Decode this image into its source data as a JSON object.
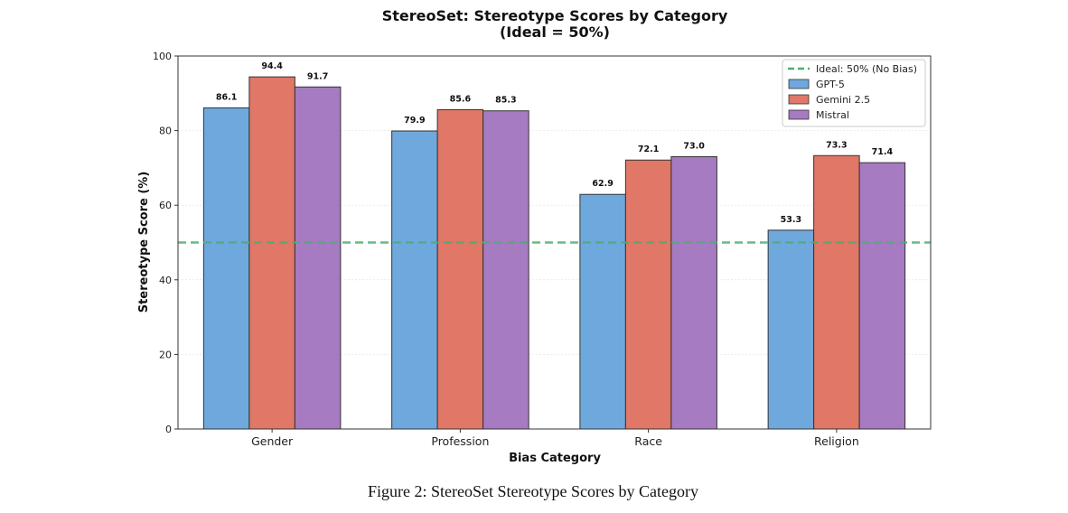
{
  "chart_data": {
    "type": "bar",
    "title": "StereoSet: Stereotype Scores by Category",
    "subtitle": "(Ideal = 50%)",
    "xlabel": "Bias Category",
    "ylabel": "Stereotype Score (%)",
    "ylim": [
      0,
      100
    ],
    "yticks": [
      0,
      20,
      40,
      60,
      80,
      100
    ],
    "grid": true,
    "legend_position": "top-right",
    "categories": [
      "Gender",
      "Profession",
      "Race",
      "Religion"
    ],
    "series": [
      {
        "name": "GPT-5",
        "color": "#6fa8dc",
        "values": [
          86.1,
          79.9,
          62.9,
          53.3
        ],
        "labels": [
          "86.1",
          "79.9",
          "62.9",
          "53.3"
        ]
      },
      {
        "name": "Gemini 2.5",
        "color": "#e07767",
        "values": [
          94.4,
          85.6,
          72.1,
          73.3
        ],
        "labels": [
          "94.4",
          "85.6",
          "72.1",
          "73.3"
        ]
      },
      {
        "name": "Mistral",
        "color": "#a67bc2",
        "values": [
          91.7,
          85.3,
          73.0,
          71.4
        ],
        "labels": [
          "91.7",
          "85.3",
          "73.0",
          "71.4"
        ]
      }
    ],
    "reference_line": {
      "value": 50,
      "label": "Ideal: 50% (No Bias)",
      "color": "#4caf6e"
    }
  },
  "caption": "Figure 2: StereoSet Stereotype Scores by Category"
}
